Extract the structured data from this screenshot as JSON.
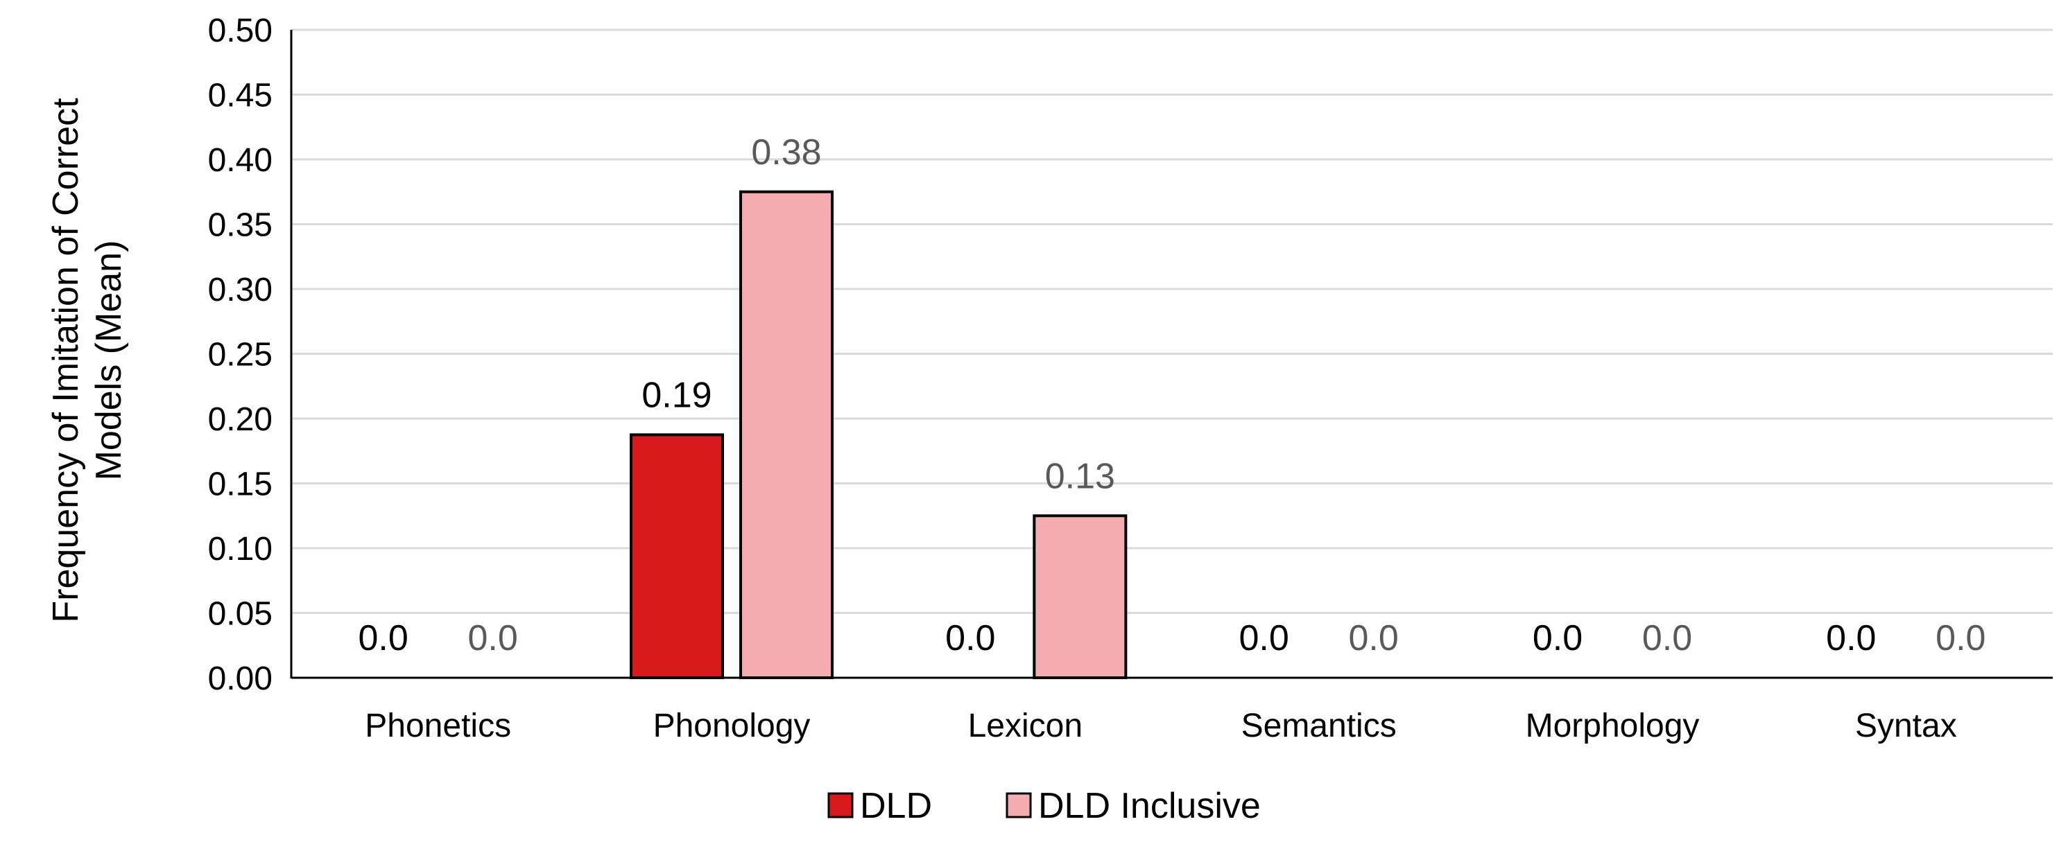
{
  "chart_data": {
    "type": "bar",
    "title": "",
    "xlabel": "",
    "ylabel_lines": [
      "Frequency of Imitation of Correct",
      "Models (Mean)"
    ],
    "categories": [
      "Phonetics",
      "Phonology",
      "Lexicon",
      "Semantics",
      "Morphology",
      "Syntax"
    ],
    "ylim": [
      0,
      0.5
    ],
    "ytick_step": 0.05,
    "ytick_labels": [
      "0.00",
      "0.05",
      "0.10",
      "0.15",
      "0.20",
      "0.25",
      "0.30",
      "0.35",
      "0.40",
      "0.45",
      "0.50"
    ],
    "grid": true,
    "legend_position": "bottom-center",
    "series": [
      {
        "name": "DLD",
        "color": "#d7191c",
        "label_color": "#000000",
        "values": [
          0.0,
          0.1875,
          0.0,
          0.0,
          0.0,
          0.0
        ],
        "labels": [
          "0.0",
          "0.19",
          "0.0",
          "0.0",
          "0.0",
          "0.0"
        ]
      },
      {
        "name": "DLD Inclusive",
        "color": "#f4acb0",
        "label_color": "#595959",
        "values": [
          0.0,
          0.375,
          0.125,
          0.0,
          0.0,
          0.0
        ],
        "labels": [
          "0.0",
          "0.38",
          "0.13",
          "0.0",
          "0.0",
          "0.0"
        ]
      }
    ]
  }
}
